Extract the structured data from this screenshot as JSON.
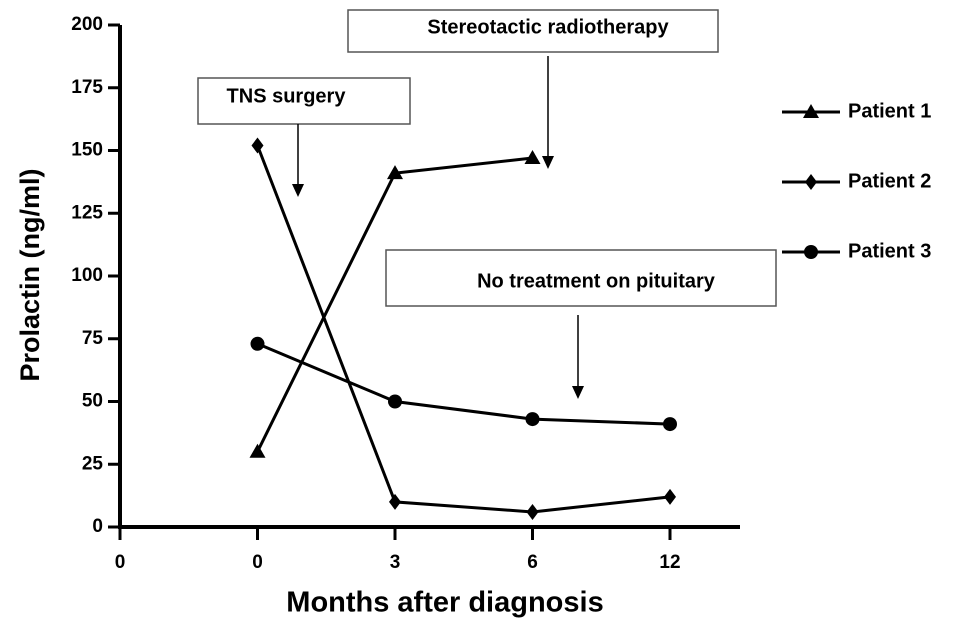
{
  "chart_data": {
    "type": "line",
    "x_label": "Months after diagnosis",
    "y_label": "Prolactin (ng/ml)",
    "categories": [
      "0",
      "0",
      "3",
      "6",
      "12"
    ],
    "series": [
      {
        "name": "Patient 1",
        "color": "#000000",
        "marker": "triangle",
        "values": [
          null,
          30,
          141,
          147,
          null
        ]
      },
      {
        "name": "Patient 2",
        "color": "#000000",
        "marker": "diamond",
        "values": [
          null,
          152,
          10,
          6,
          12
        ]
      },
      {
        "name": "Patient 3",
        "color": "#000000",
        "marker": "circle",
        "values": [
          null,
          73,
          50,
          43,
          41
        ]
      }
    ],
    "ylim": [
      0,
      200
    ],
    "yticks": [
      0,
      25,
      50,
      75,
      100,
      125,
      150,
      175,
      200
    ],
    "annotations": [
      "TNS surgery",
      "Stereotactic radiotherapy",
      "No treatment on pituitary"
    ],
    "legend": "right"
  }
}
